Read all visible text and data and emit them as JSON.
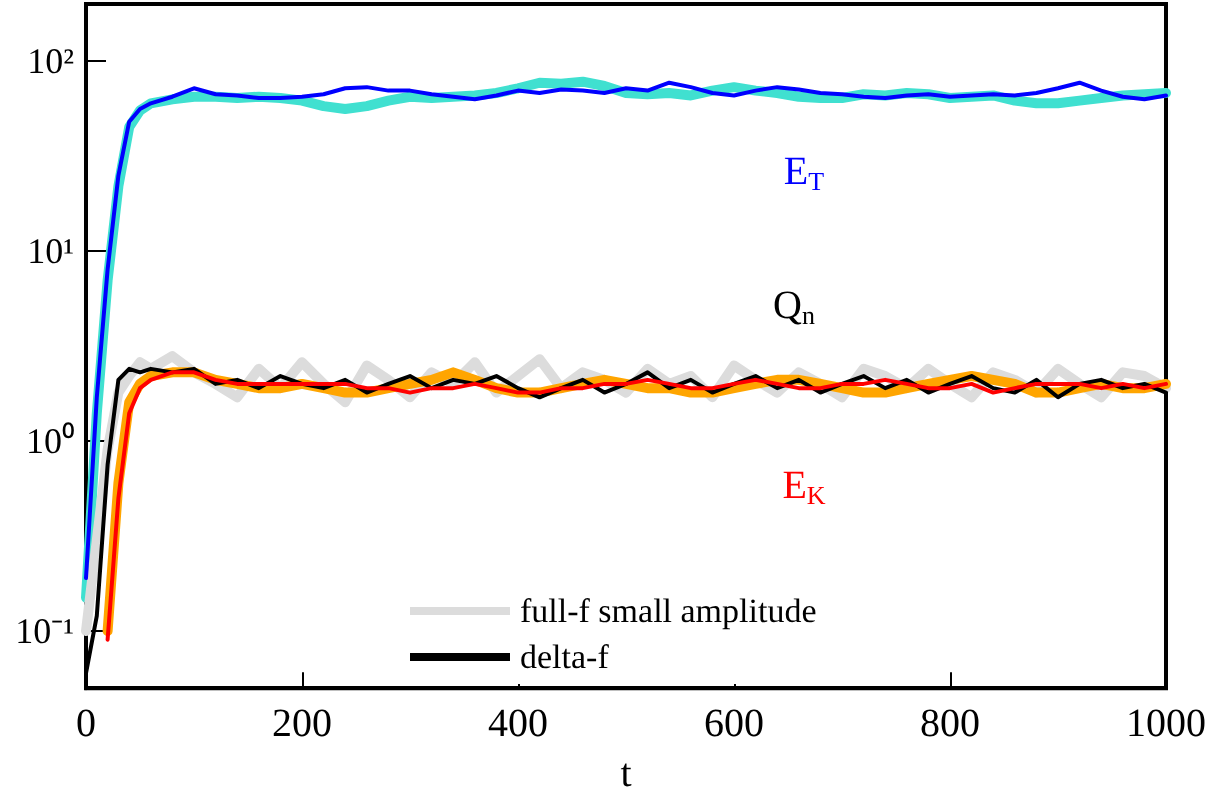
{
  "chart_data": {
    "type": "line",
    "xlabel": "t",
    "x": [
      0,
      10,
      20,
      30,
      40,
      50,
      60,
      80,
      100,
      120,
      140,
      160,
      180,
      200,
      220,
      240,
      260,
      280,
      300,
      320,
      340,
      360,
      380,
      400,
      420,
      440,
      460,
      480,
      500,
      520,
      540,
      560,
      580,
      600,
      620,
      640,
      660,
      680,
      700,
      720,
      740,
      760,
      780,
      800,
      820,
      840,
      860,
      880,
      900,
      920,
      940,
      960,
      980,
      1000
    ],
    "series": [
      {
        "color": "#40e0d0",
        "values": [
          0.15,
          1.4,
          7,
          22,
          45,
          55,
          60,
          63,
          65,
          65,
          64,
          65,
          64,
          62,
          58,
          56,
          58,
          62,
          65,
          64,
          65,
          66,
          68,
          72,
          77,
          76,
          78,
          74,
          68,
          67,
          68,
          66,
          70,
          73,
          70,
          68,
          65,
          64,
          64,
          67,
          66,
          68,
          67,
          64,
          65,
          66,
          62,
          60,
          60,
          62,
          64,
          66,
          67,
          68
        ]
      },
      {
        "color": "#0000ff",
        "values": [
          0.19,
          1.7,
          8,
          25,
          48,
          56,
          60,
          65,
          72,
          67,
          66,
          64,
          64,
          65,
          67,
          72,
          73,
          70,
          70,
          67,
          65,
          63,
          66,
          70,
          68,
          71,
          70,
          68,
          72,
          70,
          77,
          73,
          68,
          66,
          70,
          73,
          71,
          68,
          67,
          65,
          64,
          66,
          67,
          65,
          66,
          67,
          66,
          68,
          72,
          77,
          70,
          65,
          63,
          66
        ]
      },
      {
        "name": "full-f small amplitude",
        "color": "#dcdcdc",
        "values": [
          0.1,
          0.3,
          0.9,
          1.8,
          2.2,
          2.6,
          2.4,
          2.8,
          2.3,
          2.0,
          1.7,
          2.4,
          1.9,
          2.6,
          2.0,
          1.6,
          2.5,
          2.1,
          1.7,
          2.3,
          2.0,
          2.6,
          1.8,
          2.2,
          2.7,
          1.9,
          2.3,
          2.1,
          1.8,
          2.4,
          2.0,
          2.2,
          1.7,
          2.5,
          2.1,
          1.8,
          2.3,
          2.0,
          1.7,
          2.4,
          2.2,
          1.9,
          2.4,
          2.0,
          1.7,
          2.3,
          2.1,
          1.8,
          2.4,
          2.0,
          1.7,
          2.3,
          2.2,
          1.9
        ]
      },
      {
        "name": "delta-f",
        "color": "#000000",
        "values": [
          0.06,
          0.12,
          0.75,
          2.1,
          2.4,
          2.3,
          2.4,
          2.3,
          2.4,
          2.0,
          2.1,
          1.9,
          2.2,
          2.0,
          1.9,
          2.1,
          1.8,
          2.0,
          2.2,
          1.9,
          2.1,
          2.0,
          2.2,
          1.9,
          1.7,
          1.9,
          2.1,
          1.8,
          2.0,
          2.3,
          1.9,
          2.1,
          1.8,
          2.0,
          2.2,
          1.9,
          2.1,
          1.8,
          2.0,
          2.2,
          1.9,
          2.1,
          1.8,
          2.0,
          2.2,
          1.9,
          1.8,
          2.1,
          1.7,
          2.0,
          2.1,
          1.9,
          2.0,
          1.8
        ]
      },
      {
        "color": "#ffa500",
        "values": [
          null,
          null,
          0.1,
          0.6,
          1.6,
          2.0,
          2.2,
          2.3,
          2.3,
          2.1,
          2.0,
          1.9,
          1.9,
          2.0,
          1.9,
          1.8,
          1.8,
          1.9,
          2.0,
          2.1,
          2.3,
          2.1,
          1.9,
          1.8,
          1.8,
          1.9,
          2.0,
          2.1,
          2.0,
          1.9,
          1.9,
          1.8,
          1.8,
          1.9,
          2.0,
          2.1,
          2.1,
          2.0,
          1.9,
          1.8,
          1.8,
          1.9,
          2.0,
          2.1,
          2.2,
          2.1,
          2.0,
          1.8,
          1.8,
          1.9,
          2.0,
          1.9,
          1.9,
          2.0
        ]
      },
      {
        "color": "#ff0000",
        "values": [
          null,
          null,
          0.09,
          0.5,
          1.4,
          1.9,
          2.1,
          2.3,
          2.3,
          2.1,
          2.0,
          2.0,
          2.0,
          2.0,
          2.0,
          2.0,
          1.9,
          1.9,
          1.8,
          1.9,
          1.9,
          2.0,
          1.9,
          1.8,
          1.8,
          1.9,
          1.9,
          2.0,
          2.0,
          2.1,
          2.0,
          1.9,
          1.9,
          2.0,
          2.1,
          2.0,
          1.9,
          1.9,
          2.0,
          2.0,
          2.1,
          2.0,
          1.9,
          1.9,
          2.0,
          1.8,
          1.9,
          2.0,
          2.0,
          2.0,
          1.9,
          2.0,
          1.9,
          2.0
        ]
      }
    ],
    "annotations": [
      "E$_{T}$",
      "Q$_{n}$",
      "E$_{K}$"
    ],
    "log": "y",
    "xlim": [
      0,
      1000
    ],
    "xticks": [
      0,
      200,
      400,
      600,
      800,
      1000
    ],
    "ylim": [
      0.05,
      200
    ],
    "yticks": [
      {
        "value": 0.1,
        "label": "10⁻¹"
      },
      {
        "value": 1,
        "label": "10⁰"
      },
      {
        "value": 10,
        "label": "10¹"
      },
      {
        "value": 100,
        "label": "10²"
      }
    ],
    "grid": false,
    "legend": "bottom",
    "marker": "none",
    "line_style": "solid"
  }
}
